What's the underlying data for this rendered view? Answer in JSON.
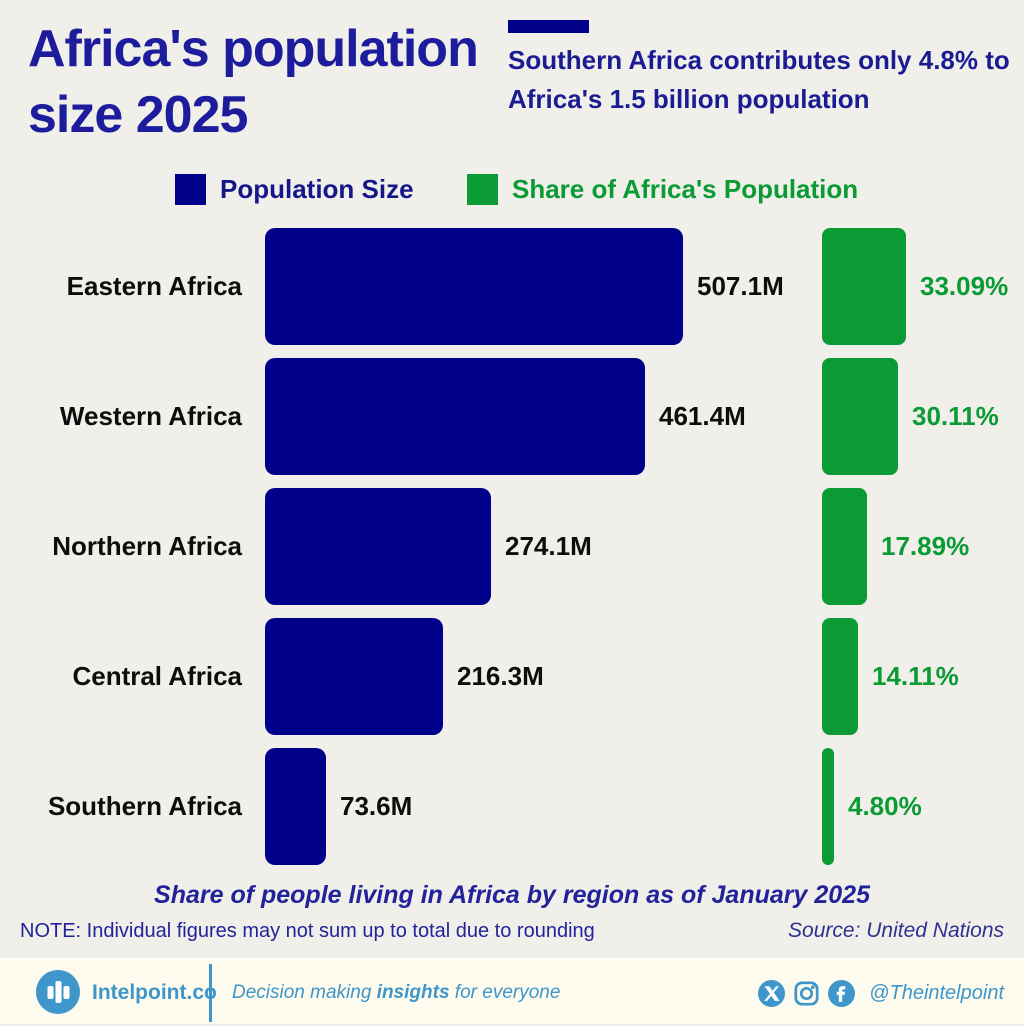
{
  "page": {
    "background": "#f0efe9"
  },
  "header": {
    "title_lines": [
      "Africa's population",
      "size 2025"
    ]
  },
  "annotation": {
    "text": "Southern Africa contributes only 4.8% to Africa's 1.5 billion population"
  },
  "legend": [
    {
      "label": "Population Size",
      "color": "#00008B"
    },
    {
      "label": "Share of Africa's Population",
      "color": "#0a9b35"
    }
  ],
  "chart_data": {
    "type": "bar",
    "orientation": "horizontal",
    "categories": [
      "Eastern Africa",
      "Western Africa",
      "Northern Africa",
      "Central Africa",
      "Southern Africa"
    ],
    "series": [
      {
        "name": "Population Size",
        "unit": "millions",
        "values": [
          507.1,
          461.4,
          274.1,
          216.3,
          73.6
        ],
        "labels": [
          "507.1M",
          "461.4M",
          "274.1M",
          "216.3M",
          "73.6M"
        ],
        "color": "#00008B"
      },
      {
        "name": "Share of Africa's Population",
        "unit": "percent",
        "values": [
          33.09,
          30.11,
          17.89,
          14.11,
          4.8
        ],
        "labels": [
          "33.09%",
          "30.11%",
          "17.89%",
          "14.11%",
          "4.80%"
        ],
        "color": "#0a9b35"
      }
    ],
    "caption": "Share of people living in Africa by region as of January 2025",
    "legend_position": "top",
    "grid": false
  },
  "notes": {
    "note": "NOTE: Individual figures may not sum up to total due to rounding",
    "source": "Source: United Nations"
  },
  "footer": {
    "brand": "Intelpoint.co",
    "tagline_pre": "Decision making ",
    "tagline_bold": "insights",
    "tagline_post": " for everyone",
    "handle": "@Theintelpoint",
    "accent": "#3e96ca"
  }
}
